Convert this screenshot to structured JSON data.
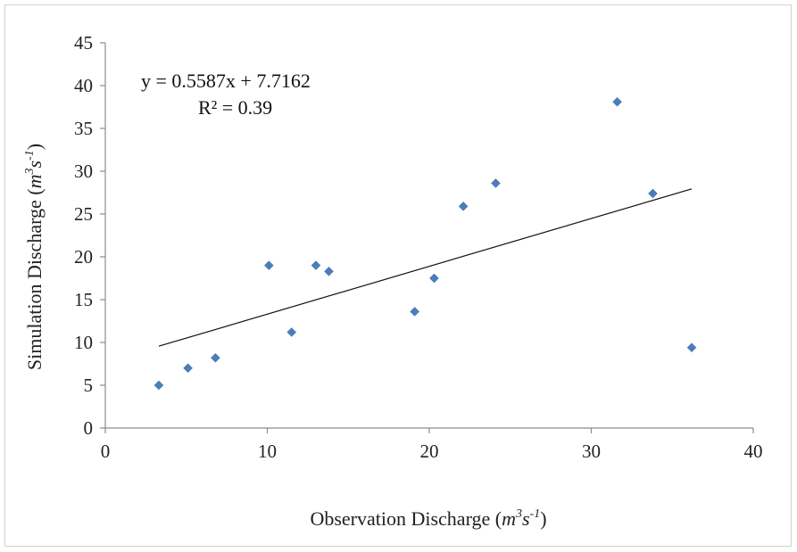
{
  "chart_data": {
    "type": "scatter",
    "title": "",
    "xlabel": "Observation Discharge",
    "xlabel_unit": [
      "m",
      "3",
      "s",
      "-1"
    ],
    "ylabel": "Simulation Discharge",
    "ylabel_unit": [
      "m",
      "3",
      "s",
      "-1"
    ],
    "xlim": [
      0,
      40
    ],
    "ylim": [
      0,
      45
    ],
    "xticks": [
      0,
      10,
      20,
      30,
      40
    ],
    "yticks": [
      0,
      5,
      10,
      15,
      20,
      25,
      30,
      35,
      40,
      45
    ],
    "grid": false,
    "legend": "none",
    "marker_color": "#4a7ebb",
    "marker_shape": "diamond",
    "points": [
      {
        "x": 3.3,
        "y": 5.0
      },
      {
        "x": 5.1,
        "y": 7.0
      },
      {
        "x": 6.8,
        "y": 8.2
      },
      {
        "x": 10.1,
        "y": 19.0
      },
      {
        "x": 11.5,
        "y": 11.2
      },
      {
        "x": 13.0,
        "y": 19.0
      },
      {
        "x": 13.8,
        "y": 18.3
      },
      {
        "x": 19.1,
        "y": 13.6
      },
      {
        "x": 20.3,
        "y": 17.5
      },
      {
        "x": 22.1,
        "y": 25.9
      },
      {
        "x": 24.1,
        "y": 28.6
      },
      {
        "x": 31.6,
        "y": 38.1
      },
      {
        "x": 33.8,
        "y": 27.4
      },
      {
        "x": 36.2,
        "y": 9.4
      }
    ],
    "trendline": {
      "type": "linear",
      "slope": 0.5587,
      "intercept": 7.7162,
      "x_range": [
        3.3,
        36.2
      ],
      "equation": "y = 0.5587x + 7.7162",
      "r_squared": "R² = 0.39"
    }
  }
}
